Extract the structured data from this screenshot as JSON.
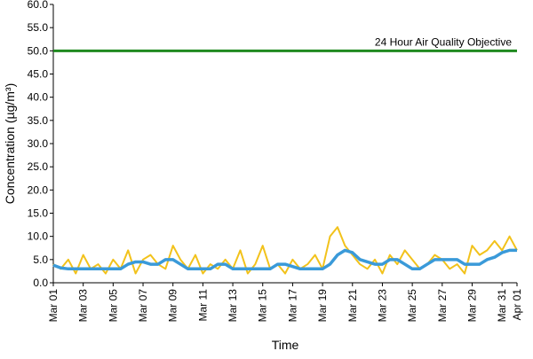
{
  "chart_data": {
    "type": "line",
    "y_label": "Concentration (µg/m³)",
    "x_label": "Time",
    "xlim": [
      0,
      31
    ],
    "xticks": [
      {
        "value": 0,
        "label": "Mar 01"
      },
      {
        "value": 2,
        "label": "Mar 03"
      },
      {
        "value": 4,
        "label": "Mar 05"
      },
      {
        "value": 6,
        "label": "Mar 07"
      },
      {
        "value": 8,
        "label": "Mar 09"
      },
      {
        "value": 10,
        "label": "Mar 11"
      },
      {
        "value": 12,
        "label": "Mar 13"
      },
      {
        "value": 14,
        "label": "Mar 15"
      },
      {
        "value": 16,
        "label": "Mar 17"
      },
      {
        "value": 18,
        "label": "Mar 19"
      },
      {
        "value": 20,
        "label": "Mar 21"
      },
      {
        "value": 22,
        "label": "Mar 23"
      },
      {
        "value": 24,
        "label": "Mar 25"
      },
      {
        "value": 26,
        "label": "Mar 27"
      },
      {
        "value": 28,
        "label": "Mar 29"
      },
      {
        "value": 30,
        "label": "Mar 31"
      },
      {
        "value": 31,
        "label": "Apr 01"
      }
    ],
    "ylim": [
      0,
      60
    ],
    "yticks": [
      {
        "value": 0,
        "label": "0.0"
      },
      {
        "value": 5,
        "label": "5.0"
      },
      {
        "value": 10,
        "label": "10.0"
      },
      {
        "value": 15,
        "label": "15.0"
      },
      {
        "value": 20,
        "label": "20.0"
      },
      {
        "value": 25,
        "label": "25.0"
      },
      {
        "value": 30,
        "label": "30.0"
      },
      {
        "value": 35,
        "label": "35.0"
      },
      {
        "value": 40,
        "label": "40.0"
      },
      {
        "value": 45,
        "label": "45.0"
      },
      {
        "value": 50,
        "label": "50.0"
      },
      {
        "value": 55,
        "label": "55.0"
      },
      {
        "value": 60,
        "label": "60.0"
      }
    ],
    "grid": false,
    "objective": {
      "label": "24 Hour Air Quality Objective",
      "value": 50,
      "color": "#1f8a1f"
    },
    "x": [
      0,
      0.5,
      1,
      1.5,
      2,
      2.5,
      3,
      3.5,
      4,
      4.5,
      5,
      5.5,
      6,
      6.5,
      7,
      7.5,
      8,
      8.5,
      9,
      9.5,
      10,
      10.5,
      11,
      11.5,
      12,
      12.5,
      13,
      13.5,
      14,
      14.5,
      15,
      15.5,
      16,
      16.5,
      17,
      17.5,
      18,
      18.5,
      19,
      19.5,
      20,
      20.5,
      21,
      21.5,
      22,
      22.5,
      23,
      23.5,
      24,
      24.5,
      25,
      25.5,
      26,
      26.5,
      27,
      27.5,
      28,
      28.5,
      29,
      29.5,
      30,
      30.5,
      31
    ],
    "series": [
      {
        "color": "#f2c21b",
        "width": 2,
        "values": [
          4,
          3,
          5,
          2,
          6,
          3,
          4,
          2,
          5,
          3,
          7,
          2,
          5,
          6,
          4,
          3,
          8,
          5,
          3,
          6,
          2,
          4,
          3,
          5,
          3,
          7,
          2,
          4,
          8,
          3,
          4,
          2,
          5,
          3,
          4,
          6,
          3,
          10,
          12,
          8,
          6,
          4,
          3,
          5,
          2,
          6,
          4,
          7,
          5,
          3,
          4,
          6,
          5,
          3,
          4,
          2,
          8,
          6,
          7,
          9,
          7,
          10,
          7
        ]
      },
      {
        "color": "#3a9ad9",
        "width": 3.5,
        "values": [
          3.8,
          3.2,
          3,
          3,
          3,
          3,
          3,
          3,
          3,
          3,
          4,
          4.5,
          4.5,
          4,
          4,
          5,
          5,
          4,
          3,
          3,
          3,
          3,
          4,
          4,
          3,
          3,
          3,
          3,
          3,
          3,
          4,
          4,
          3.5,
          3,
          3,
          3,
          3,
          4,
          6,
          7,
          6.5,
          5,
          4.5,
          4,
          4,
          5,
          5,
          4,
          3,
          3,
          4,
          5,
          5,
          5,
          5,
          4,
          4,
          4,
          5,
          5.5,
          6.5,
          7,
          7
        ]
      }
    ]
  }
}
